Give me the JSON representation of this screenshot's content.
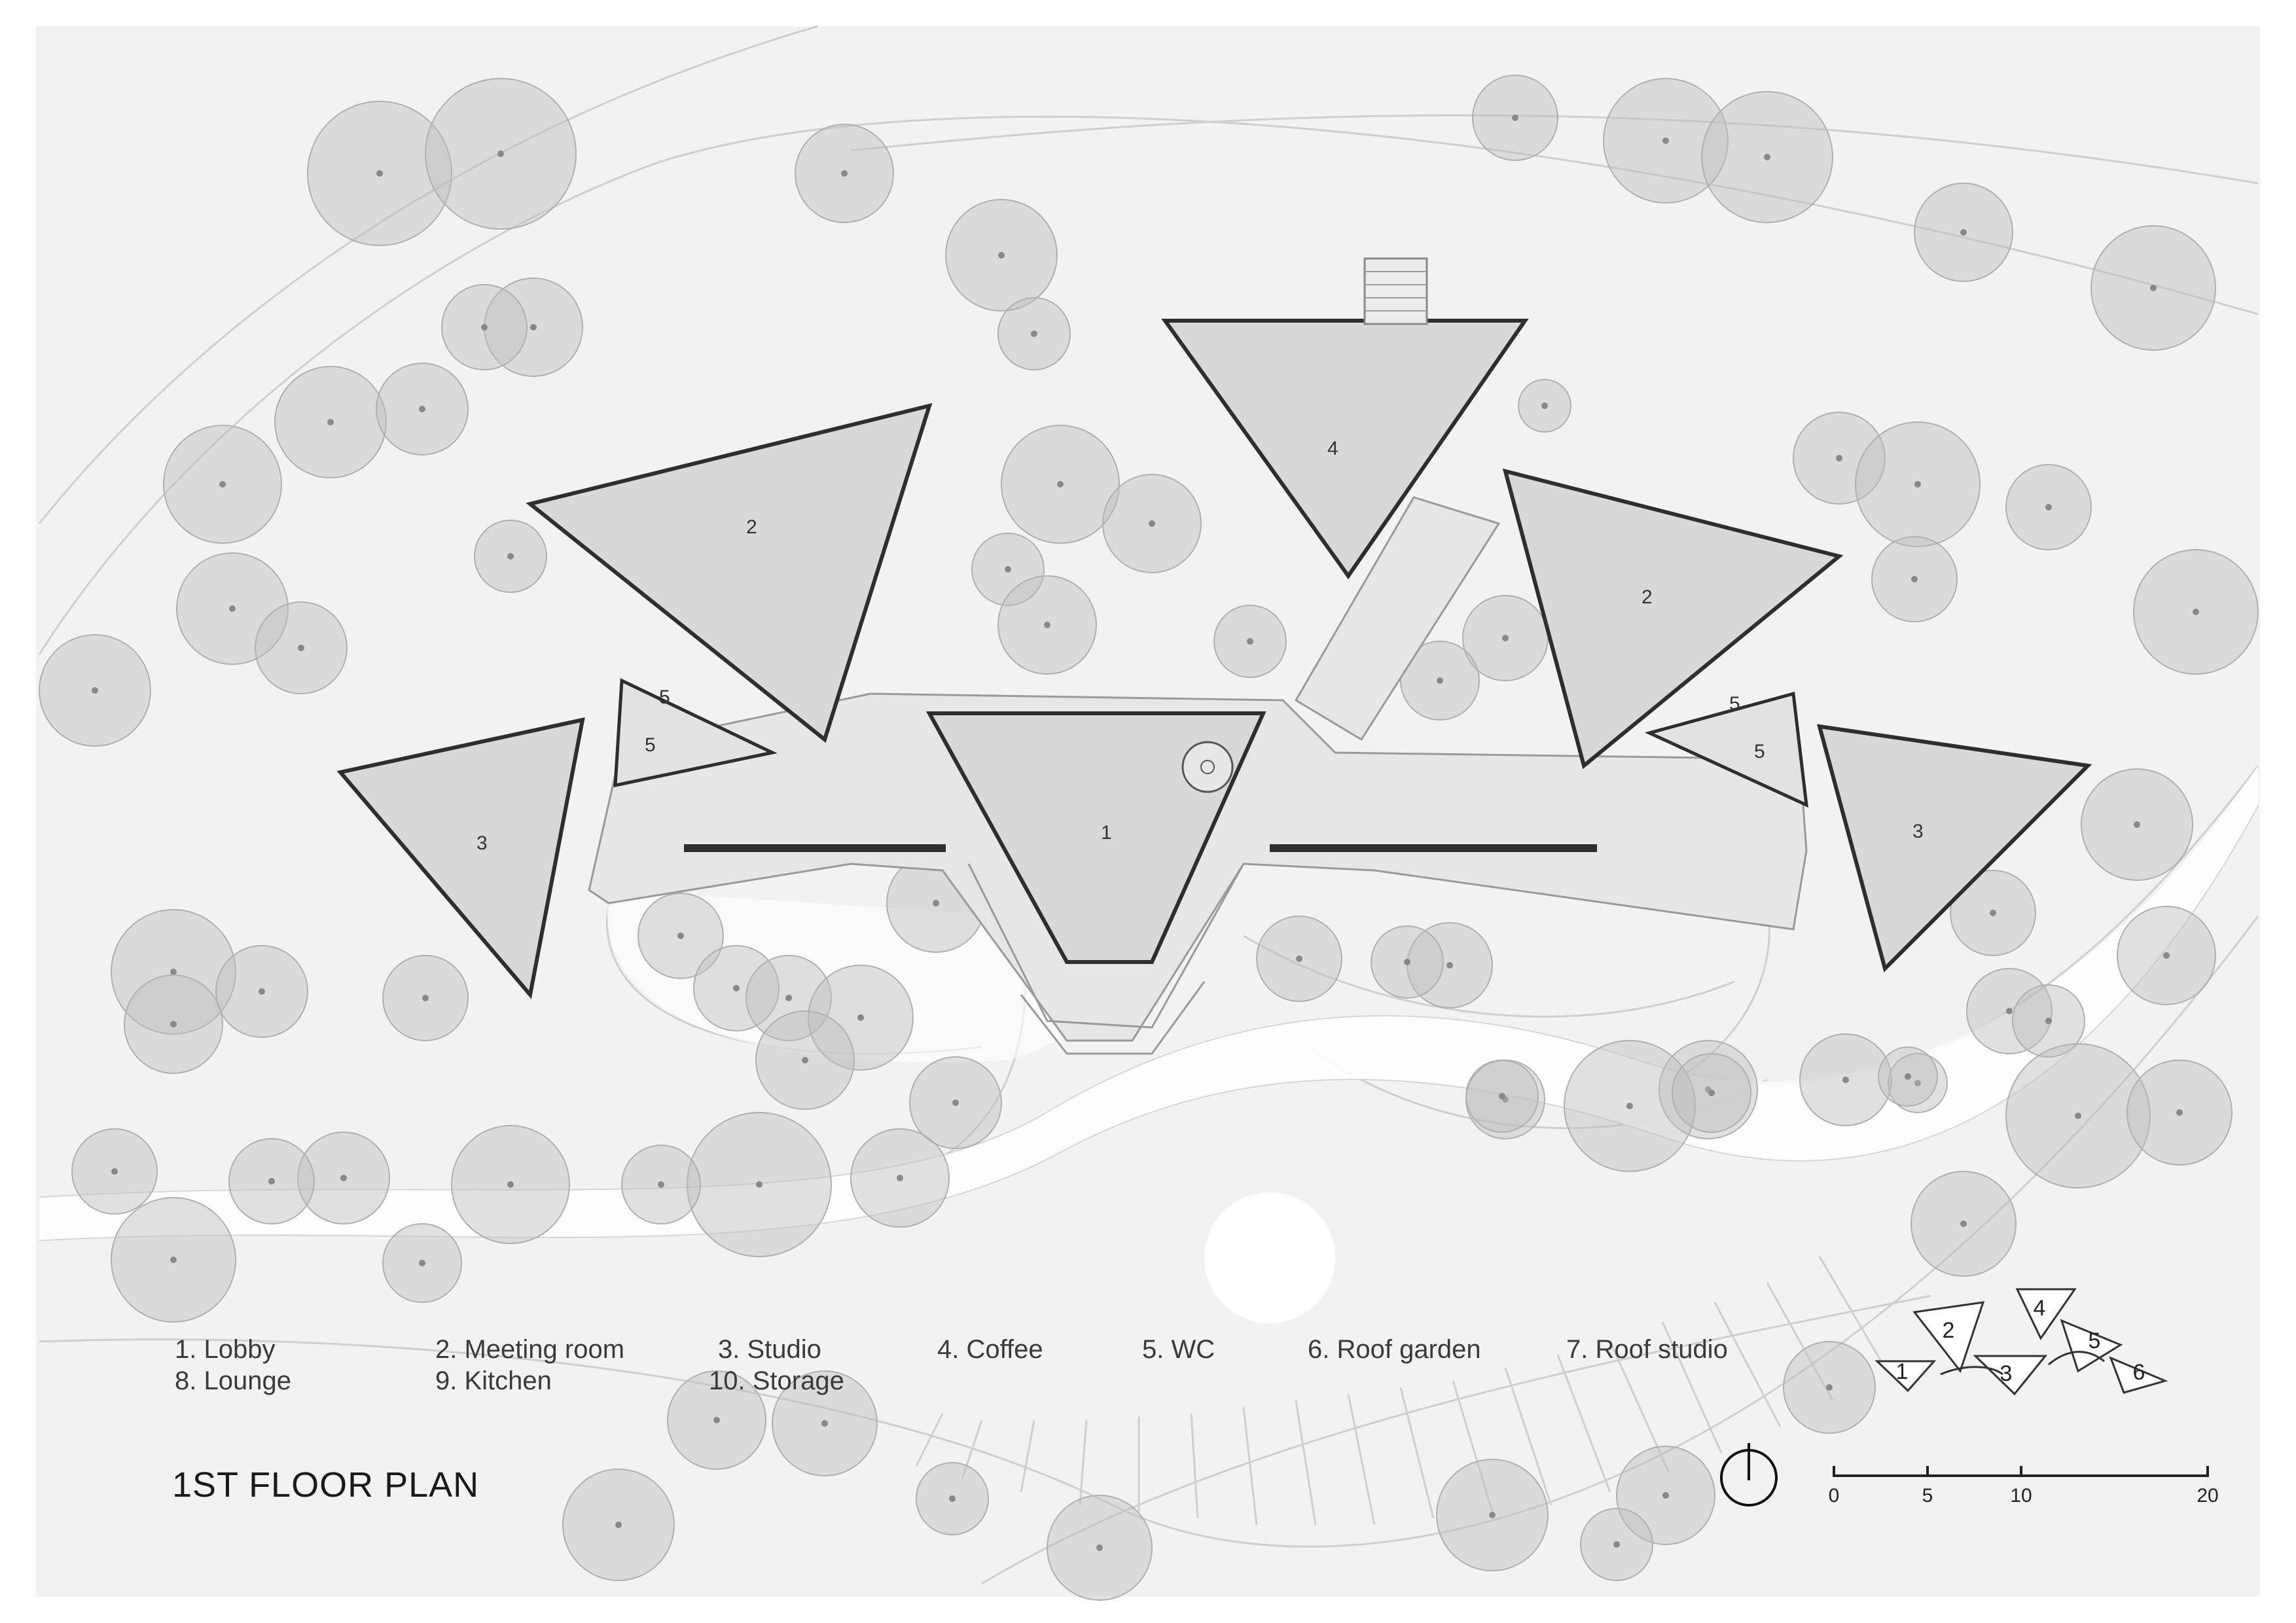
{
  "drawing": {
    "title": "1ST FLOOR PLAN",
    "legend": [
      "1. Lobby",
      "2. Meeting room",
      "3. Studio",
      "4. Coffee",
      "5. WC",
      "6. Roof garden",
      "7. Roof studio",
      "8. Lounge",
      "9. Kitchen",
      "10. Storage"
    ],
    "room_labels": [
      "1",
      "2",
      "3",
      "4",
      "2",
      "3",
      "5",
      "5",
      "5",
      "5"
    ],
    "key_plan_labels": [
      "1",
      "2",
      "3",
      "4",
      "5",
      "6"
    ],
    "scale_bar": {
      "ticks": [
        "0",
        "5",
        "10",
        "20"
      ]
    }
  },
  "colors": {
    "background": "#f2f2f2",
    "paper": "#ffffff",
    "room_fill": "#d8d8d8",
    "corridor_fill": "#e8e8e8",
    "wall": "#2e2e2e",
    "tree": "#bdbdbd",
    "path_line": "#c9c9c9"
  },
  "icons": [
    "north-arrow-icon"
  ]
}
